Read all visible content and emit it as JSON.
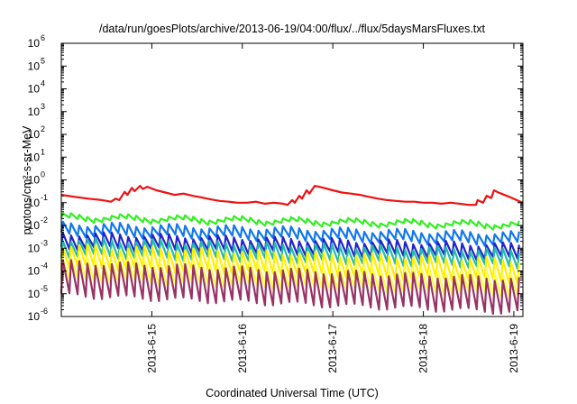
{
  "chart_data": {
    "type": "line",
    "title": "/data/run/goesPlots/archive/2013-06-19/04:00/flux/../flux/5daysMarsFluxes.txt",
    "xlabel": "Coordinated Universal Time (UTC)",
    "ylabel": "protons/cm²-s-sr-MeV",
    "y_scale": "log",
    "ylim": [
      1e-06,
      1000000.0
    ],
    "xlim": [
      0,
      5.1
    ],
    "x_start_date": "2013-6-14",
    "grid": false,
    "legend": "none",
    "x_ticks": [
      {
        "x": 1,
        "label": "2013-6-15"
      },
      {
        "x": 2,
        "label": "2013-6-16"
      },
      {
        "x": 3,
        "label": "2013-6-17"
      },
      {
        "x": 4,
        "label": "2013-6-18"
      },
      {
        "x": 5,
        "label": "2013-6-19"
      }
    ],
    "y_ticks": [
      {
        "base": "10",
        "exp": "-6",
        "value": 1e-06
      },
      {
        "base": "10",
        "exp": "-5",
        "value": 1e-05
      },
      {
        "base": "10",
        "exp": "-4",
        "value": 0.0001
      },
      {
        "base": "10",
        "exp": "-3",
        "value": 0.001
      },
      {
        "base": "10",
        "exp": "-2",
        "value": 0.01
      },
      {
        "base": "10",
        "exp": "-1",
        "value": 0.1
      },
      {
        "base": "10",
        "exp": "0",
        "value": 1
      },
      {
        "base": "10",
        "exp": "1",
        "value": 10.0
      },
      {
        "base": "10",
        "exp": "2",
        "value": 100.0
      },
      {
        "base": "10",
        "exp": "3",
        "value": 1000.0
      },
      {
        "base": "10",
        "exp": "4",
        "value": 10000.0
      },
      {
        "base": "10",
        "exp": "5",
        "value": 100000.0
      },
      {
        "base": "10",
        "exp": "6",
        "value": 1000000.0
      }
    ],
    "series": [
      {
        "color": "#ee1111",
        "x": [
          0.0,
          0.15,
          0.3,
          0.45,
          0.55,
          0.6,
          0.64,
          0.7,
          0.73,
          0.78,
          0.81,
          0.87,
          0.9,
          0.95,
          1.05,
          1.15,
          1.25,
          1.35,
          1.45,
          1.55,
          1.65,
          1.75,
          1.85,
          1.95,
          2.05,
          2.15,
          2.25,
          2.35,
          2.45,
          2.5,
          2.55,
          2.58,
          2.63,
          2.66,
          2.71,
          2.74,
          2.8,
          2.9,
          3.0,
          3.1,
          3.2,
          3.3,
          3.4,
          3.5,
          3.6,
          3.7,
          3.8,
          3.9,
          4.0,
          4.1,
          4.2,
          4.3,
          4.4,
          4.5,
          4.58,
          4.6,
          4.66,
          4.7,
          4.75,
          4.78,
          4.83,
          4.86,
          4.95,
          5.05,
          5.1
        ],
        "y": [
          0.22,
          0.18,
          0.15,
          0.13,
          0.11,
          0.15,
          0.13,
          0.3,
          0.22,
          0.45,
          0.32,
          0.55,
          0.4,
          0.5,
          0.35,
          0.28,
          0.22,
          0.25,
          0.2,
          0.17,
          0.14,
          0.12,
          0.11,
          0.1,
          0.1,
          0.11,
          0.09,
          0.1,
          0.09,
          0.08,
          0.13,
          0.1,
          0.2,
          0.15,
          0.35,
          0.25,
          0.55,
          0.45,
          0.35,
          0.28,
          0.25,
          0.22,
          0.18,
          0.15,
          0.13,
          0.12,
          0.11,
          0.11,
          0.1,
          0.1,
          0.09,
          0.1,
          0.09,
          0.08,
          0.08,
          0.13,
          0.1,
          0.2,
          0.16,
          0.35,
          0.28,
          0.25,
          0.18,
          0.12,
          0.1
        ]
      },
      {
        "color": "#33ee22",
        "period": 0.09,
        "peak": 0.028,
        "drop": 0.65,
        "end": 0.013
      },
      {
        "color": "#1177ee",
        "period": 0.09,
        "peak": 0.012,
        "drop": 0.35,
        "end": 0.0045
      },
      {
        "color": "#2222cc",
        "period": 0.09,
        "peak": 0.0045,
        "drop": 0.25,
        "end": 0.0014
      },
      {
        "color": "#22bbaa",
        "period": 0.09,
        "peak": 0.0025,
        "drop": 0.2,
        "end": 0.0008
      },
      {
        "color": "#ffee00",
        "period": 0.09,
        "peak": 0.0013,
        "drop": 0.12,
        "end": 0.0003
      },
      {
        "color": "#ffff44",
        "period": 0.09,
        "peak": 0.00035,
        "drop": 0.12,
        "end": 8e-05
      },
      {
        "color": "#993366",
        "period": 0.09,
        "peak": 0.00025,
        "drop": 0.035,
        "end": 4.5e-05
      }
    ]
  }
}
